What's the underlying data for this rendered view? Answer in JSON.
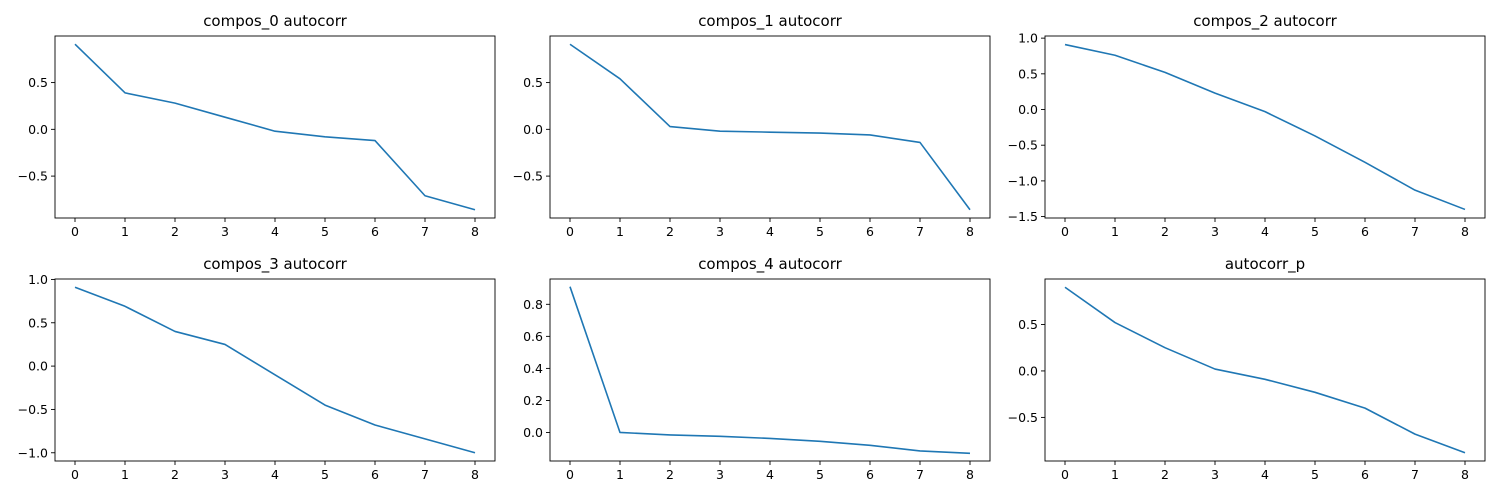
{
  "line_color": "#1f77b4",
  "chart_data": [
    {
      "type": "line",
      "title": "compos_0 autocorr",
      "x": [
        0,
        1,
        2,
        3,
        4,
        5,
        6,
        7,
        8
      ],
      "series": [
        {
          "values": [
            0.91,
            0.39,
            0.28,
            0.13,
            -0.02,
            -0.08,
            -0.12,
            -0.71,
            -0.86
          ]
        }
      ],
      "xticks": [
        0,
        1,
        2,
        3,
        4,
        5,
        6,
        7,
        8
      ],
      "yticks": [
        -0.5,
        0.0,
        0.5
      ],
      "ytick_labels": [
        "−0.5",
        "0.0",
        "0.5"
      ],
      "xlim": [
        -0.4,
        8.4
      ],
      "ylim": [
        -0.948,
        0.998
      ],
      "grid": false
    },
    {
      "type": "line",
      "title": "compos_1 autocorr",
      "x": [
        0,
        1,
        2,
        3,
        4,
        5,
        6,
        7,
        8
      ],
      "series": [
        {
          "values": [
            0.91,
            0.54,
            0.03,
            -0.02,
            -0.03,
            -0.04,
            -0.06,
            -0.14,
            -0.86
          ]
        }
      ],
      "xticks": [
        0,
        1,
        2,
        3,
        4,
        5,
        6,
        7,
        8
      ],
      "yticks": [
        -0.5,
        0.0,
        0.5
      ],
      "ytick_labels": [
        "−0.5",
        "0.0",
        "0.5"
      ],
      "xlim": [
        -0.4,
        8.4
      ],
      "ylim": [
        -0.948,
        0.998
      ],
      "grid": false
    },
    {
      "type": "line",
      "title": "compos_2 autocorr",
      "x": [
        0,
        1,
        2,
        3,
        4,
        5,
        6,
        7,
        8
      ],
      "series": [
        {
          "values": [
            0.91,
            0.76,
            0.52,
            0.23,
            -0.03,
            -0.37,
            -0.74,
            -1.13,
            -1.4
          ]
        }
      ],
      "xticks": [
        0,
        1,
        2,
        3,
        4,
        5,
        6,
        7,
        8
      ],
      "yticks": [
        -1.5,
        -1.0,
        -0.5,
        0.0,
        0.5,
        1.0
      ],
      "ytick_labels": [
        "−1.5",
        "−1.0",
        "−0.5",
        "0.0",
        "0.5",
        "1.0"
      ],
      "xlim": [
        -0.4,
        8.4
      ],
      "ylim": [
        -1.52,
        1.03
      ],
      "grid": false
    },
    {
      "type": "line",
      "title": "compos_3 autocorr",
      "x": [
        0,
        1,
        2,
        3,
        4,
        5,
        6,
        7,
        8
      ],
      "series": [
        {
          "values": [
            0.91,
            0.69,
            0.4,
            0.25,
            -0.1,
            -0.45,
            -0.68,
            -0.84,
            -1.0
          ]
        }
      ],
      "xticks": [
        0,
        1,
        2,
        3,
        4,
        5,
        6,
        7,
        8
      ],
      "yticks": [
        -1.0,
        -0.5,
        0.0,
        0.5,
        1.0
      ],
      "ytick_labels": [
        "−1.0",
        "−0.5",
        "0.0",
        "0.5",
        "1.0"
      ],
      "xlim": [
        -0.4,
        8.4
      ],
      "ylim": [
        -1.095,
        1.005
      ],
      "grid": false
    },
    {
      "type": "line",
      "title": "compos_4 autocorr",
      "x": [
        0,
        1,
        2,
        3,
        4,
        5,
        6,
        7,
        8
      ],
      "series": [
        {
          "values": [
            0.91,
            0.0,
            -0.015,
            -0.024,
            -0.037,
            -0.055,
            -0.08,
            -0.115,
            -0.13
          ]
        }
      ],
      "xticks": [
        0,
        1,
        2,
        3,
        4,
        5,
        6,
        7,
        8
      ],
      "yticks": [
        0.0,
        0.2,
        0.4,
        0.6,
        0.8
      ],
      "ytick_labels": [
        "0.0",
        "0.2",
        "0.4",
        "0.6",
        "0.8"
      ],
      "xlim": [
        -0.4,
        8.4
      ],
      "ylim": [
        -0.178,
        0.958
      ],
      "grid": false
    },
    {
      "type": "line",
      "title": "autocorr_p",
      "x": [
        0,
        1,
        2,
        3,
        4,
        5,
        6,
        7,
        8
      ],
      "series": [
        {
          "values": [
            0.9,
            0.52,
            0.25,
            0.02,
            -0.09,
            -0.23,
            -0.4,
            -0.68,
            -0.88
          ]
        }
      ],
      "xticks": [
        0,
        1,
        2,
        3,
        4,
        5,
        6,
        7,
        8
      ],
      "yticks": [
        -0.5,
        0.0,
        0.5
      ],
      "ytick_labels": [
        "−0.5",
        "0.0",
        "0.5"
      ],
      "xlim": [
        -0.4,
        8.4
      ],
      "ylim": [
        -0.969,
        0.989
      ],
      "grid": false
    }
  ]
}
